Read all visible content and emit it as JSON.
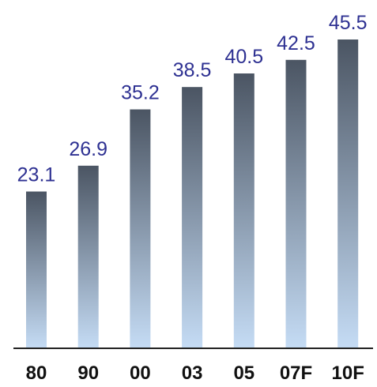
{
  "chart_data": {
    "type": "bar",
    "categories": [
      "80",
      "90",
      "00",
      "03",
      "05",
      "07F",
      "10F"
    ],
    "values": [
      23.1,
      26.9,
      35.2,
      38.5,
      40.5,
      42.5,
      45.5
    ],
    "value_labels": [
      "23.1",
      "26.9",
      "35.2",
      "38.5",
      "40.5",
      "42.5",
      "45.5"
    ],
    "ylim": [
      0,
      45.5
    ],
    "grid": false,
    "legend": "none",
    "colors": {
      "bar_top": "#4b5563",
      "bar_bottom": "#c5dcf5",
      "value_label": "#2e3192",
      "axis": "#222222",
      "category_label": "#111111"
    }
  }
}
